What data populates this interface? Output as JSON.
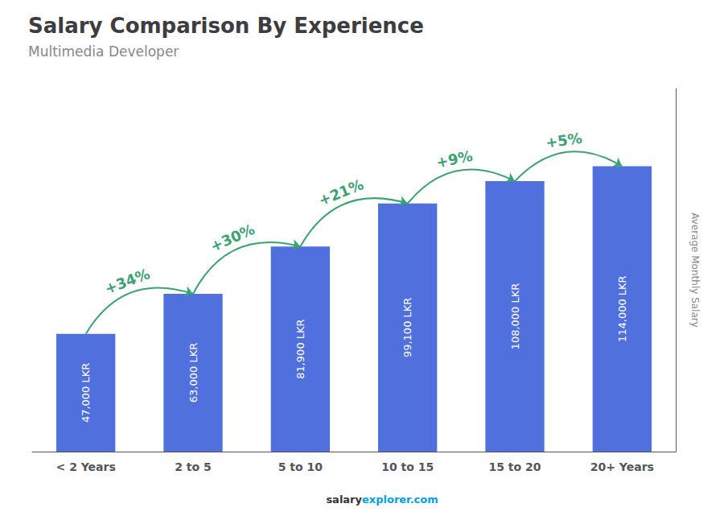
{
  "chart_data": {
    "type": "bar",
    "title": "Salary Comparison By Experience",
    "subtitle": "Multimedia Developer",
    "categories": [
      "< 2 Years",
      "2 to 5",
      "5 to 10",
      "10 to 15",
      "15 to 20",
      "20+ Years"
    ],
    "values": [
      47000,
      63000,
      81900,
      99100,
      108000,
      114000
    ],
    "value_labels": [
      "47,000 LKR",
      "63,000 LKR",
      "81,900 LKR",
      "99,100 LKR",
      "108,000 LKR",
      "114,000 LKR"
    ],
    "data_labels": true,
    "annotations": [
      "+34%",
      "+30%",
      "+21%",
      "+9%",
      "+5%"
    ],
    "ylabel": "Average Monthly Salary",
    "footer": [
      "salary",
      "explorer.com"
    ],
    "ylim": [
      0,
      145000
    ],
    "tick_labels": "x",
    "grid": false
  }
}
